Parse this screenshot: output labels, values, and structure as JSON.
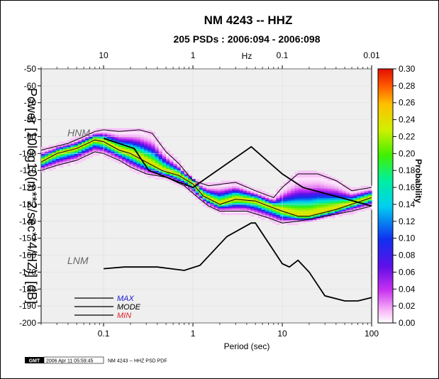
{
  "colors": {
    "min_text": "#e0202a",
    "max_text": "#1a1ad0",
    "mode_text": "#000000",
    "background": "#ffffff",
    "panel": "#ffffff"
  },
  "chart_data": {
    "type": "heatmap",
    "title": "NM 4243 -- HHZ",
    "subtitle": "205 PSDs : 2006:094 - 2006:098",
    "xlabel": "Period (sec)",
    "top_xlabel": "Hz",
    "ylabel": "Power [10log10(m**2/sec**4/HZ)] [dB]",
    "x_scale": "log",
    "xlim": [
      0.02,
      100
    ],
    "ylim": [
      -200,
      -50
    ],
    "x_ticks": [
      0.1,
      1,
      10,
      100
    ],
    "x_tick_labels": [
      "0.1",
      "1",
      "10",
      "100"
    ],
    "top_ticks": [
      0.1,
      1,
      10,
      100
    ],
    "top_tick_labels": [
      "10",
      "1",
      "0.1",
      "0.01"
    ],
    "y_ticks": [
      -200,
      -190,
      -180,
      -170,
      -160,
      -150,
      -140,
      -130,
      -120,
      -110,
      -100,
      -90,
      -80,
      -70,
      -60,
      -50
    ],
    "colorbar": {
      "label": "Probability",
      "range": [
        0,
        0.3
      ],
      "ticks": [
        "0.00",
        "0.02",
        "0.04",
        "0.06",
        "0.08",
        "0.10",
        "0.12",
        "0.14",
        "0.16",
        "0.18",
        "0.20",
        "0.22",
        "0.24",
        "0.26",
        "0.28",
        "0.30"
      ]
    },
    "reference_models": [
      {
        "name": "HNM",
        "points": [
          [
            0.1,
            -91
          ],
          [
            0.22,
            -97
          ],
          [
            0.32,
            -110
          ],
          [
            1.0,
            -120
          ],
          [
            4.5,
            -96
          ],
          [
            10,
            -112
          ],
          [
            17,
            -120
          ],
          [
            100,
            -131
          ]
        ]
      },
      {
        "name": "LNM",
        "points": [
          [
            0.1,
            -168
          ],
          [
            0.17,
            -167
          ],
          [
            0.4,
            -167
          ],
          [
            0.8,
            -169
          ],
          [
            1.2,
            -166
          ],
          [
            2.4,
            -149
          ],
          [
            4.5,
            -141
          ],
          [
            5.0,
            -141
          ],
          [
            10,
            -165
          ],
          [
            12,
            -167
          ],
          [
            15,
            -163
          ],
          [
            20,
            -170
          ],
          [
            30,
            -184
          ],
          [
            50,
            -187
          ],
          [
            70,
            -187
          ],
          [
            100,
            -185
          ]
        ]
      }
    ],
    "series": [
      {
        "name": "MAX",
        "points": [
          [
            0.02,
            -98
          ],
          [
            0.04,
            -94
          ],
          [
            0.06,
            -90
          ],
          [
            0.08,
            -87
          ],
          [
            0.1,
            -86
          ],
          [
            0.15,
            -87
          ],
          [
            0.25,
            -86
          ],
          [
            0.35,
            -88
          ],
          [
            0.5,
            -99
          ],
          [
            0.7,
            -106
          ],
          [
            1,
            -116
          ],
          [
            1.5,
            -119
          ],
          [
            3,
            -117
          ],
          [
            5,
            -122
          ],
          [
            8,
            -126
          ],
          [
            10,
            -120
          ],
          [
            15,
            -112
          ],
          [
            25,
            -112
          ],
          [
            40,
            -116
          ],
          [
            60,
            -122
          ],
          [
            100,
            -120
          ]
        ]
      },
      {
        "name": "MODE",
        "points": [
          [
            0.02,
            -105
          ],
          [
            0.03,
            -100
          ],
          [
            0.05,
            -97
          ],
          [
            0.08,
            -92
          ],
          [
            0.1,
            -93
          ],
          [
            0.15,
            -98
          ],
          [
            0.2,
            -100
          ],
          [
            0.3,
            -105
          ],
          [
            0.45,
            -110
          ],
          [
            0.7,
            -113
          ],
          [
            1,
            -118
          ],
          [
            1.3,
            -125
          ],
          [
            2,
            -130
          ],
          [
            3,
            -127
          ],
          [
            5,
            -128
          ],
          [
            7,
            -131
          ],
          [
            10,
            -134
          ],
          [
            15,
            -137
          ],
          [
            20,
            -137
          ],
          [
            40,
            -133
          ],
          [
            100,
            -126
          ]
        ]
      },
      {
        "name": "MIN",
        "points": [
          [
            0.02,
            -110
          ],
          [
            0.03,
            -107
          ],
          [
            0.05,
            -104
          ],
          [
            0.08,
            -99
          ],
          [
            0.1,
            -100
          ],
          [
            0.15,
            -104
          ],
          [
            0.2,
            -108
          ],
          [
            0.3,
            -112
          ],
          [
            0.5,
            -114
          ],
          [
            0.8,
            -119
          ],
          [
            1.2,
            -127
          ],
          [
            1.5,
            -131
          ],
          [
            2,
            -134
          ],
          [
            4,
            -134
          ],
          [
            7,
            -138
          ],
          [
            10,
            -141
          ],
          [
            15,
            -140
          ],
          [
            30,
            -137
          ],
          [
            60,
            -134
          ],
          [
            100,
            -131
          ]
        ]
      }
    ]
  },
  "footer": {
    "logo": "GMT",
    "timestamp": "2006 Apr 11 05:59:45",
    "caption": "NM 4243 -- HHZ PSD PDF"
  }
}
